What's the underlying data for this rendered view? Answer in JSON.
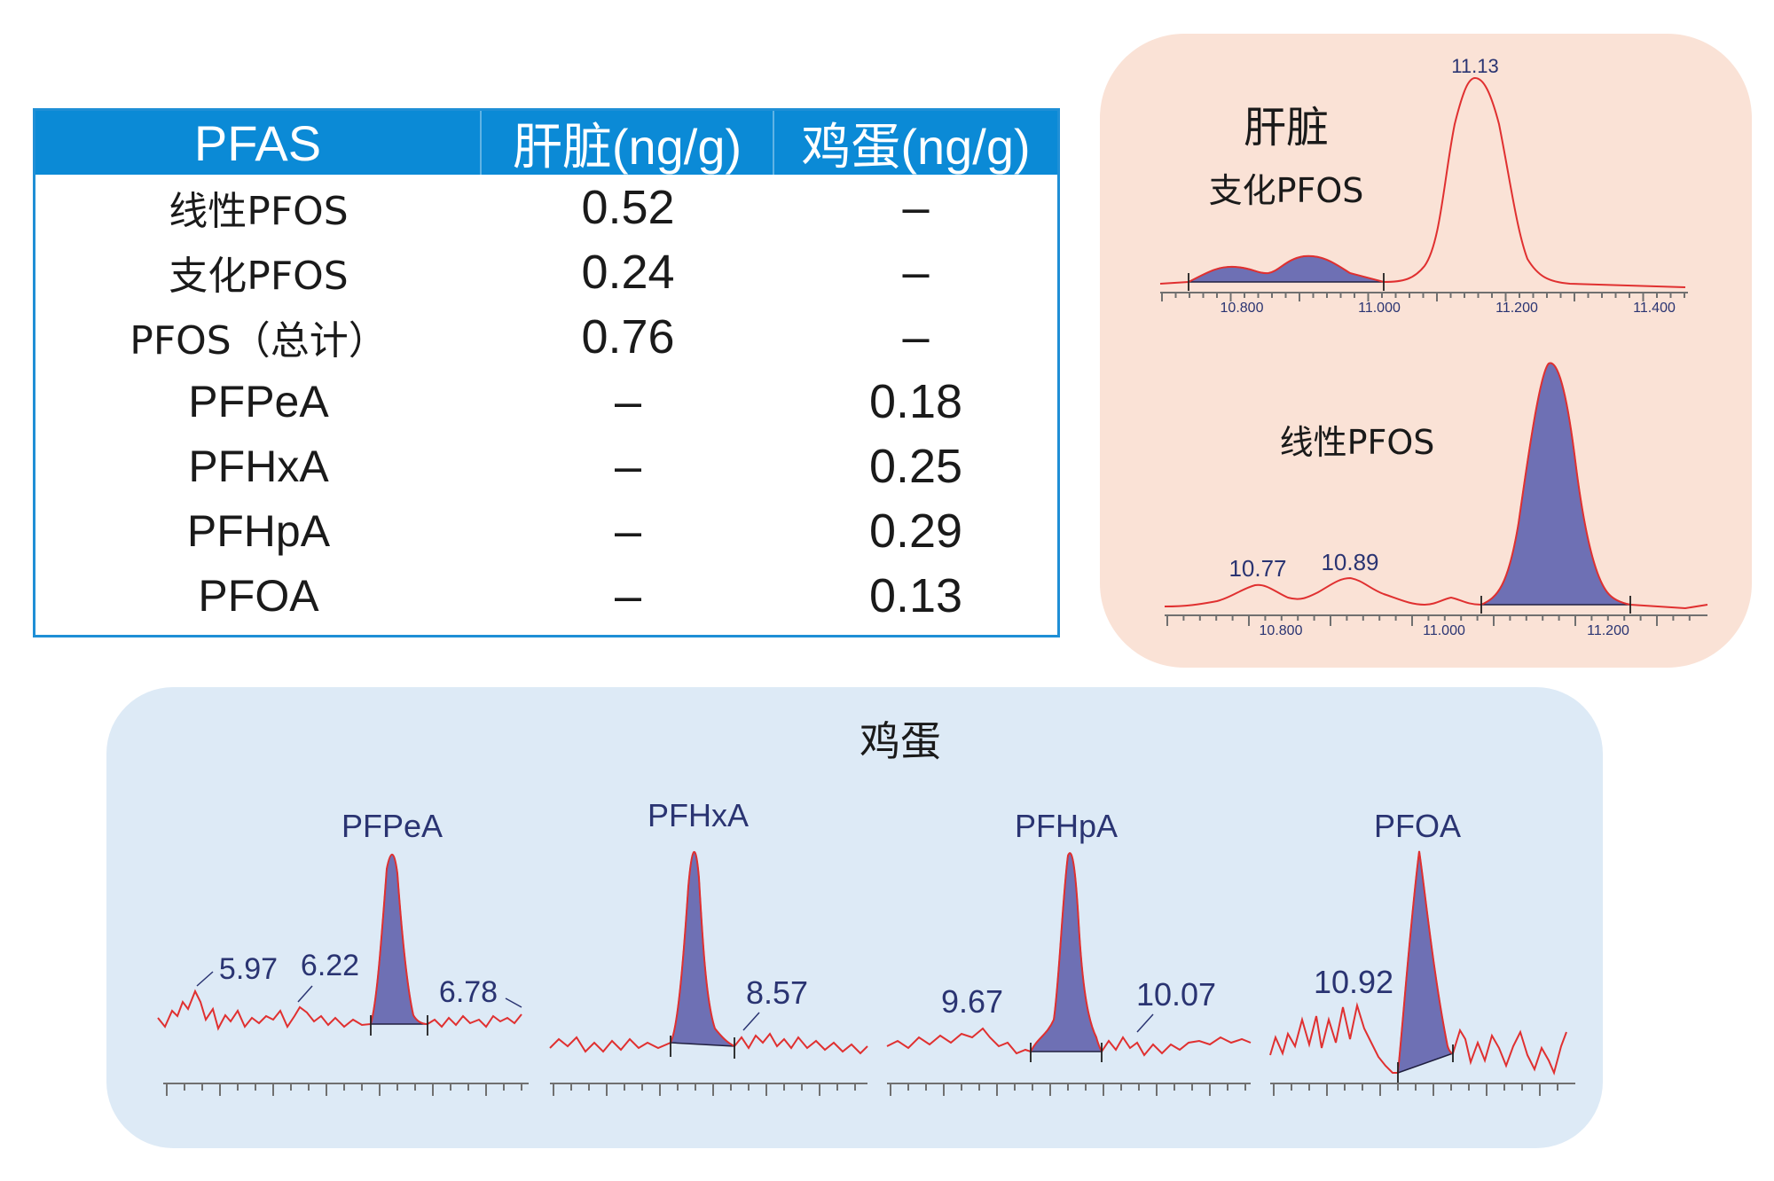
{
  "table": {
    "headers": [
      "PFAS",
      "肝脏(ng/g)",
      "鸡蛋(ng/g)"
    ],
    "rows": [
      [
        "线性PFOS",
        "0.52",
        "–"
      ],
      [
        "支化PFOS",
        "0.24",
        "–"
      ],
      [
        "PFOS（总计）",
        "0.76",
        "–"
      ],
      [
        "PFPeA",
        "–",
        "0.18"
      ],
      [
        "PFHxA",
        "–",
        "0.25"
      ],
      [
        "PFHpA",
        "–",
        "0.29"
      ],
      [
        "PFOA",
        "–",
        "0.13"
      ]
    ]
  },
  "liver": {
    "title": "肝脏",
    "branched_label": "支化PFOS",
    "branched_peak_label": "11.13",
    "branched_ticks": [
      "10.800",
      "11.000",
      "11.200",
      "11.400"
    ],
    "linear_label": "线性PFOS",
    "linear_peak_labels": [
      "10.77",
      "10.89"
    ],
    "linear_ticks": [
      "10.800",
      "11.000",
      "11.200"
    ]
  },
  "egg": {
    "title": "鸡蛋",
    "peaks": [
      {
        "name": "PFPeA",
        "labels": [
          "5.97",
          "6.22",
          "6.78"
        ]
      },
      {
        "name": "PFHxA",
        "labels": [
          "8.57"
        ]
      },
      {
        "name": "PFHpA",
        "labels": [
          "9.67",
          "10.07"
        ]
      },
      {
        "name": "PFOA",
        "labels": [
          "10.92"
        ]
      }
    ]
  },
  "colors": {
    "table_header": "#0b8ad6",
    "liver_panel": "#fae2d6",
    "egg_panel": "#ddeaf6",
    "trace": "#e03030",
    "peak_fill": "#6e70b4"
  },
  "chart_data": [
    {
      "type": "line",
      "title": "肝脏 支化PFOS",
      "xlabel": "",
      "ylabel": "",
      "xlim": [
        10.72,
        11.45
      ],
      "x_ticks": [
        "10.800",
        "11.000",
        "11.200",
        "11.400"
      ],
      "annotations": [
        {
          "x": 11.13,
          "label": "11.13"
        }
      ],
      "integrated_region": [
        10.75,
        11.01
      ]
    },
    {
      "type": "line",
      "title": "肝脏 线性PFOS",
      "xlabel": "",
      "ylabel": "",
      "xlim": [
        10.63,
        11.3
      ],
      "x_ticks": [
        "10.800",
        "11.000",
        "11.200"
      ],
      "annotations": [
        {
          "x": 10.77,
          "label": "10.77"
        },
        {
          "x": 10.89,
          "label": "10.89"
        }
      ],
      "integrated_region": [
        11.04,
        11.16
      ]
    },
    {
      "type": "line",
      "title": "PFPeA",
      "annotations": [
        "5.97",
        "6.22",
        "6.78"
      ]
    },
    {
      "type": "line",
      "title": "PFHxA",
      "annotations": [
        "8.57"
      ]
    },
    {
      "type": "line",
      "title": "PFHpA",
      "annotations": [
        "9.67",
        "10.07"
      ]
    },
    {
      "type": "line",
      "title": "PFOA",
      "annotations": [
        "10.92"
      ]
    }
  ]
}
